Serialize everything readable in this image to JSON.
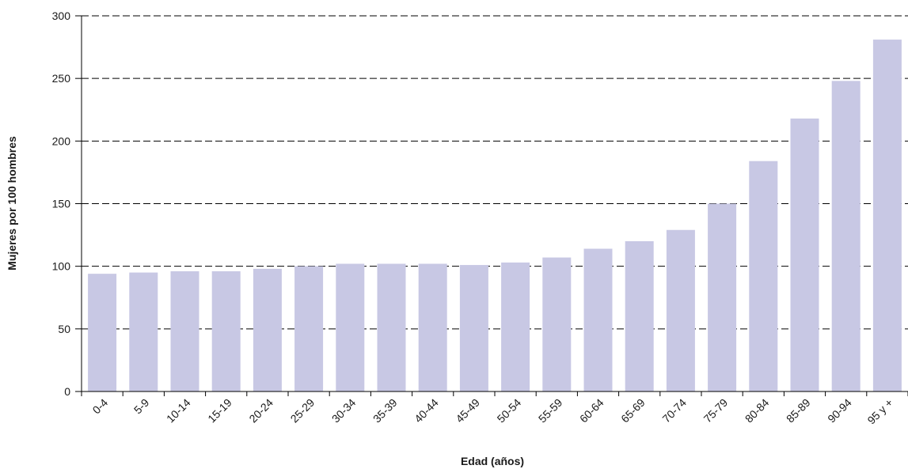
{
  "chart_data": {
    "type": "bar",
    "categories": [
      "0-4",
      "5-9",
      "10-14",
      "15-19",
      "20-24",
      "25-29",
      "30-34",
      "35-39",
      "40-44",
      "45-49",
      "50-54",
      "55-59",
      "60-64",
      "65-69",
      "70-74",
      "75-79",
      "80-84",
      "85-89",
      "90-94",
      "95 y +"
    ],
    "values": [
      94,
      95,
      96,
      96,
      98,
      100,
      102,
      102,
      102,
      101,
      103,
      107,
      114,
      120,
      129,
      150,
      184,
      218,
      248,
      281
    ],
    "xlabel": "Edad (años)",
    "ylabel": "Mujeres por 100 hombres",
    "ylim": [
      0,
      300
    ],
    "yticks": [
      "0",
      "50",
      "100",
      "150",
      "200",
      "250",
      "300"
    ],
    "grid": "horizontal dashed",
    "legend": "none",
    "colors": {
      "bar": "#c8c8e4",
      "axis": "#000000",
      "grid": "#000000"
    }
  }
}
